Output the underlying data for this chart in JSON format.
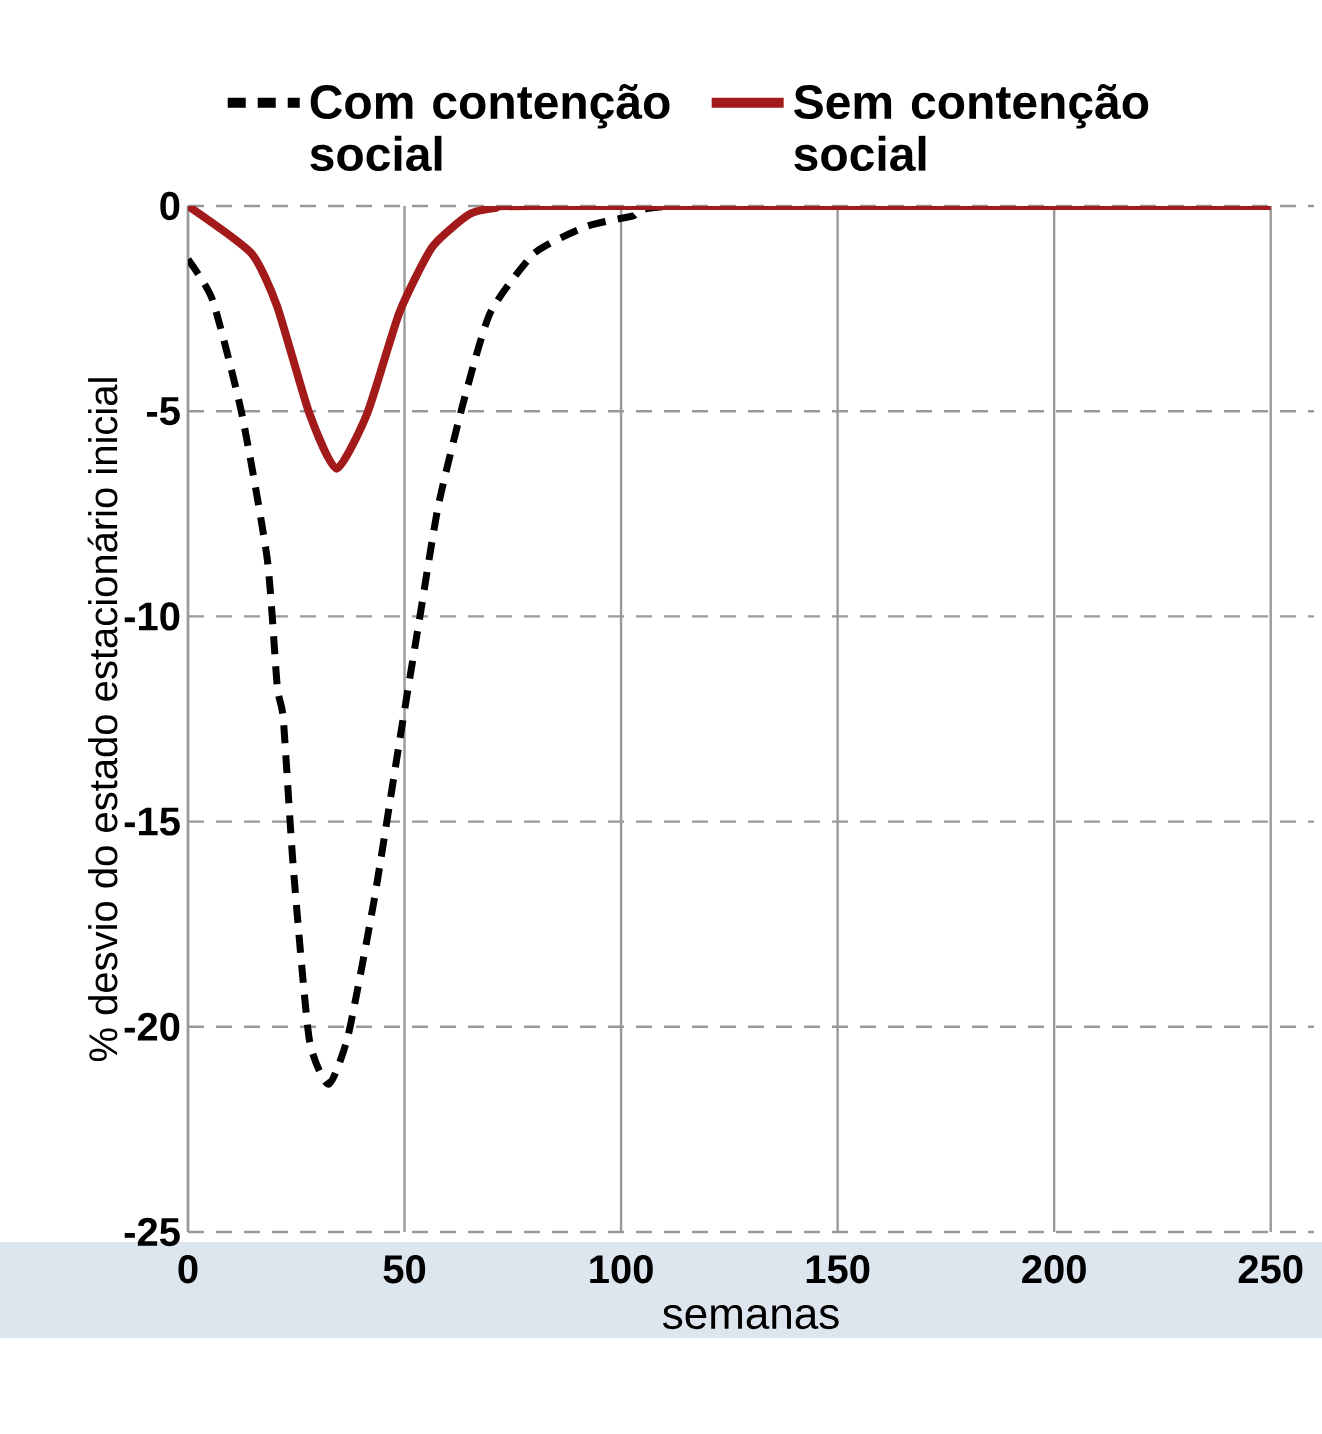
{
  "chart_data": {
    "type": "line",
    "xlabel": "semanas",
    "ylabel": "% desvio do estado estacionário inicial",
    "xlim": [
      0,
      260
    ],
    "xticks": [
      0,
      50,
      100,
      150,
      200,
      250
    ],
    "ylim": [
      -25,
      0
    ],
    "yticks": [
      -25,
      -20,
      -15,
      -10,
      -5,
      0
    ],
    "grid": true,
    "legend": "top",
    "series": [
      {
        "name": "Com contenção social",
        "color": "#000000",
        "line_style": "dashed",
        "x": [
          0,
          5.7,
          12.4,
          18.3,
          20.6,
          22,
          24.3,
          28,
          32.5,
          37,
          43,
          48.9,
          53.4,
          57.8,
          63.8,
          69.8,
          80,
          92,
          102.5,
          115,
          250
        ],
        "values": [
          -1.3,
          -2.3,
          -5.05,
          -8.6,
          -11.7,
          -12.5,
          -16.1,
          -20.3,
          -21.4,
          -20.2,
          -16.9,
          -13,
          -10.1,
          -7.3,
          -4.7,
          -2.6,
          -1.15,
          -0.5,
          -0.25,
          0,
          0
        ]
      },
      {
        "name": "Sem contenção social",
        "color": "#a31a1a",
        "line_style": "solid",
        "x": [
          0,
          14.6,
          20.6,
          28,
          34.3,
          41.4,
          48.8,
          56.4,
          65,
          71,
          80,
          250
        ],
        "values": [
          0,
          -1.15,
          -2.45,
          -5.05,
          -6.4,
          -5.05,
          -2.6,
          -1,
          -0.2,
          -0.05,
          0,
          0
        ]
      }
    ]
  }
}
